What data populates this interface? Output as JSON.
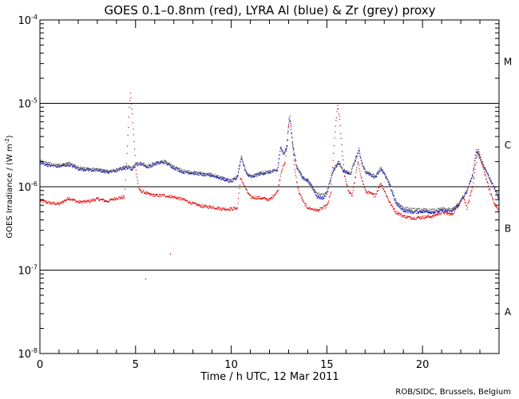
{
  "chart_data": {
    "type": "scatter",
    "title": "GOES 0.1–0.8nm (red), LYRA Al (blue) & Zr (grey) proxy",
    "xlabel": "Time / h UTC, 12 Mar 2011",
    "ylabel_main": "GOES Irradiance / (W m",
    "ylabel_sup": "-2",
    "ylabel_end": ")",
    "xlim": [
      0,
      24
    ],
    "ylim_log10": [
      -8,
      -4
    ],
    "x_ticks": [
      0,
      5,
      10,
      15,
      20
    ],
    "x_tick_labels": [
      "0",
      "5",
      "10",
      "15",
      "20"
    ],
    "y_ticks": [
      {
        "exp": -4,
        "base": "10",
        "sup": "-4"
      },
      {
        "exp": -5,
        "base": "10",
        "sup": "-5"
      },
      {
        "exp": -6,
        "base": "10",
        "sup": "-6"
      },
      {
        "exp": -7,
        "base": "10",
        "sup": "-7"
      },
      {
        "exp": -8,
        "base": "10",
        "sup": "-8"
      }
    ],
    "class_lines": [
      -5,
      -6,
      -7
    ],
    "class_labels": [
      {
        "label": "M",
        "log_value": -4.5
      },
      {
        "label": "C",
        "log_value": -5.5
      },
      {
        "label": "B",
        "log_value": -6.5
      },
      {
        "label": "A",
        "log_value": -7.5
      }
    ],
    "series": [
      {
        "name": "GOES 0.1-0.8nm",
        "color": "#e00000",
        "points": [
          [
            0,
            -6.16
          ],
          [
            0.5,
            -6.19
          ],
          [
            1,
            -6.2
          ],
          [
            1.5,
            -6.13
          ],
          [
            2,
            -6.18
          ],
          [
            2.5,
            -6.17
          ],
          [
            3,
            -6.14
          ],
          [
            3.5,
            -6.17
          ],
          [
            4,
            -6.13
          ],
          [
            4.4,
            -6.12
          ],
          [
            4.55,
            -5.5
          ],
          [
            4.65,
            -5.05
          ],
          [
            4.7,
            -4.88
          ],
          [
            4.78,
            -5.05
          ],
          [
            4.9,
            -5.45
          ],
          [
            5.0,
            -5.8
          ],
          [
            5.15,
            -6.03
          ],
          [
            5.3,
            -6.05
          ],
          [
            5.45,
            -6.06
          ],
          [
            5.6,
            -6.08
          ],
          [
            6,
            -6.1
          ],
          [
            6.5,
            -6.1
          ],
          [
            7,
            -6.12
          ],
          [
            7.5,
            -6.15
          ],
          [
            8,
            -6.2
          ],
          [
            8.5,
            -6.23
          ],
          [
            9,
            -6.24
          ],
          [
            9.5,
            -6.26
          ],
          [
            10,
            -6.26
          ],
          [
            10.3,
            -6.25
          ],
          [
            10.45,
            -5.9
          ],
          [
            10.6,
            -5.95
          ],
          [
            10.8,
            -6.05
          ],
          [
            11,
            -6.12
          ],
          [
            11.5,
            -6.13
          ],
          [
            12,
            -6.15
          ],
          [
            12.4,
            -6.05
          ],
          [
            12.6,
            -5.8
          ],
          [
            12.8,
            -5.7
          ],
          [
            12.95,
            -5.3
          ],
          [
            13.05,
            -5.15
          ],
          [
            13.15,
            -5.4
          ],
          [
            13.3,
            -5.8
          ],
          [
            13.5,
            -6.05
          ],
          [
            13.8,
            -6.2
          ],
          [
            14,
            -6.25
          ],
          [
            14.5,
            -6.28
          ],
          [
            15,
            -6.22
          ],
          [
            15.2,
            -6.05
          ],
          [
            15.35,
            -5.5
          ],
          [
            15.45,
            -5.2
          ],
          [
            15.55,
            -5.02
          ],
          [
            15.65,
            -5.2
          ],
          [
            15.75,
            -5.5
          ],
          [
            15.9,
            -5.85
          ],
          [
            16.1,
            -6.05
          ],
          [
            16.3,
            -6.1
          ],
          [
            16.6,
            -5.7
          ],
          [
            16.8,
            -5.9
          ],
          [
            17,
            -6.05
          ],
          [
            17.5,
            -6.1
          ],
          [
            17.8,
            -5.95
          ],
          [
            18,
            -6.05
          ],
          [
            18.3,
            -6.2
          ],
          [
            18.6,
            -6.3
          ],
          [
            19,
            -6.35
          ],
          [
            19.5,
            -6.37
          ],
          [
            20,
            -6.36
          ],
          [
            20.5,
            -6.35
          ],
          [
            21,
            -6.3
          ],
          [
            21.5,
            -6.33
          ],
          [
            21.9,
            -6.2
          ],
          [
            22.1,
            -6.1
          ],
          [
            22.3,
            -6.25
          ],
          [
            22.6,
            -6.0
          ],
          [
            22.8,
            -5.65
          ],
          [
            22.9,
            -5.55
          ],
          [
            23.05,
            -5.7
          ],
          [
            23.25,
            -5.85
          ],
          [
            23.5,
            -6.05
          ],
          [
            23.75,
            -6.2
          ],
          [
            24,
            -6.3
          ],
          [
            6.8,
            -6.8
          ],
          [
            5.5,
            -7.1
          ]
        ]
      },
      {
        "name": "LYRA Al proxy",
        "color": "#0000c0",
        "points": [
          [
            0,
            -5.71
          ],
          [
            0.5,
            -5.74
          ],
          [
            1,
            -5.75
          ],
          [
            1.5,
            -5.73
          ],
          [
            2,
            -5.78
          ],
          [
            2.5,
            -5.79
          ],
          [
            3,
            -5.8
          ],
          [
            3.5,
            -5.82
          ],
          [
            4,
            -5.8
          ],
          [
            4.5,
            -5.76
          ],
          [
            4.8,
            -5.78
          ],
          [
            5,
            -5.73
          ],
          [
            5.3,
            -5.72
          ],
          [
            5.6,
            -5.76
          ],
          [
            6,
            -5.72
          ],
          [
            6.5,
            -5.7
          ],
          [
            7,
            -5.77
          ],
          [
            7.5,
            -5.82
          ],
          [
            8,
            -5.83
          ],
          [
            8.5,
            -5.85
          ],
          [
            9,
            -5.86
          ],
          [
            9.5,
            -5.9
          ],
          [
            10,
            -5.93
          ],
          [
            10.3,
            -5.88
          ],
          [
            10.5,
            -5.64
          ],
          [
            10.6,
            -5.72
          ],
          [
            10.8,
            -5.85
          ],
          [
            11,
            -5.88
          ],
          [
            11.5,
            -5.84
          ],
          [
            12,
            -5.82
          ],
          [
            12.4,
            -5.8
          ],
          [
            12.55,
            -5.52
          ],
          [
            12.7,
            -5.6
          ],
          [
            12.9,
            -5.5
          ],
          [
            13.0,
            -5.17
          ],
          [
            13.05,
            -5.2
          ],
          [
            13.2,
            -5.5
          ],
          [
            13.4,
            -5.75
          ],
          [
            13.7,
            -5.88
          ],
          [
            14,
            -5.92
          ],
          [
            14.5,
            -6.12
          ],
          [
            14.8,
            -6.13
          ],
          [
            15,
            -6.06
          ],
          [
            15.3,
            -5.8
          ],
          [
            15.6,
            -5.7
          ],
          [
            15.8,
            -5.8
          ],
          [
            16.2,
            -5.85
          ],
          [
            16.5,
            -5.65
          ],
          [
            16.65,
            -5.55
          ],
          [
            16.8,
            -5.7
          ],
          [
            17,
            -5.82
          ],
          [
            17.5,
            -5.88
          ],
          [
            17.8,
            -5.78
          ],
          [
            18,
            -5.85
          ],
          [
            18.3,
            -6.0
          ],
          [
            18.6,
            -6.2
          ],
          [
            19,
            -6.28
          ],
          [
            19.5,
            -6.3
          ],
          [
            20,
            -6.29
          ],
          [
            20.5,
            -6.3
          ],
          [
            21,
            -6.28
          ],
          [
            21.5,
            -6.29
          ],
          [
            21.9,
            -6.2
          ],
          [
            22.3,
            -6.05
          ],
          [
            22.6,
            -5.85
          ],
          [
            22.8,
            -5.55
          ],
          [
            22.9,
            -5.6
          ],
          [
            23.1,
            -5.7
          ],
          [
            23.3,
            -5.8
          ],
          [
            23.6,
            -5.95
          ],
          [
            23.8,
            -6.05
          ],
          [
            24,
            -6.15
          ]
        ]
      },
      {
        "name": "LYRA Zr proxy",
        "color": "#707070",
        "points": [
          [
            0,
            -5.69
          ],
          [
            0.5,
            -5.72
          ],
          [
            1,
            -5.74
          ],
          [
            1.5,
            -5.71
          ],
          [
            2,
            -5.76
          ],
          [
            2.5,
            -5.78
          ],
          [
            3,
            -5.79
          ],
          [
            3.5,
            -5.81
          ],
          [
            4,
            -5.79
          ],
          [
            4.5,
            -5.75
          ],
          [
            4.8,
            -5.77
          ],
          [
            5,
            -5.72
          ],
          [
            5.3,
            -5.71
          ],
          [
            5.6,
            -5.75
          ],
          [
            6,
            -5.71
          ],
          [
            6.5,
            -5.69
          ],
          [
            7,
            -5.76
          ],
          [
            7.5,
            -5.81
          ],
          [
            8,
            -5.82
          ],
          [
            8.5,
            -5.84
          ],
          [
            9,
            -5.85
          ],
          [
            9.5,
            -5.89
          ],
          [
            10,
            -5.92
          ],
          [
            10.3,
            -5.87
          ],
          [
            10.5,
            -5.65
          ],
          [
            10.6,
            -5.71
          ],
          [
            10.8,
            -5.84
          ],
          [
            11,
            -5.87
          ],
          [
            11.5,
            -5.83
          ],
          [
            12,
            -5.81
          ],
          [
            12.4,
            -5.79
          ],
          [
            12.55,
            -5.54
          ],
          [
            12.7,
            -5.61
          ],
          [
            12.9,
            -5.52
          ],
          [
            13.0,
            -5.2
          ],
          [
            13.05,
            -5.22
          ],
          [
            13.2,
            -5.52
          ],
          [
            13.4,
            -5.76
          ],
          [
            13.7,
            -5.89
          ],
          [
            14,
            -5.93
          ],
          [
            14.5,
            -6.08
          ],
          [
            14.8,
            -6.1
          ],
          [
            15,
            -6.04
          ],
          [
            15.3,
            -5.79
          ],
          [
            15.6,
            -5.71
          ],
          [
            15.8,
            -5.79
          ],
          [
            16.2,
            -5.84
          ],
          [
            16.5,
            -5.66
          ],
          [
            16.65,
            -5.57
          ],
          [
            16.8,
            -5.71
          ],
          [
            17,
            -5.81
          ],
          [
            17.5,
            -5.87
          ],
          [
            17.8,
            -5.77
          ],
          [
            18,
            -5.84
          ],
          [
            18.3,
            -5.98
          ],
          [
            18.6,
            -6.17
          ],
          [
            19,
            -6.25
          ],
          [
            19.5,
            -6.27
          ],
          [
            20,
            -6.27
          ],
          [
            20.5,
            -6.28
          ],
          [
            21,
            -6.26
          ],
          [
            21.5,
            -6.27
          ],
          [
            21.9,
            -6.19
          ],
          [
            22.3,
            -6.04
          ],
          [
            22.6,
            -5.86
          ],
          [
            22.8,
            -5.57
          ],
          [
            22.9,
            -5.62
          ],
          [
            23.1,
            -5.71
          ],
          [
            23.3,
            -5.81
          ],
          [
            23.6,
            -5.94
          ],
          [
            23.8,
            -6.03
          ],
          [
            24,
            -6.12
          ]
        ]
      }
    ],
    "credit": "ROB/SIDC, Brussels, Belgium"
  }
}
